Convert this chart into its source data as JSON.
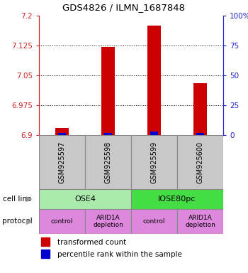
{
  "title": "GDS4826 / ILMN_1687848",
  "samples": [
    "GSM925597",
    "GSM925598",
    "GSM925599",
    "GSM925600"
  ],
  "transformed_counts": [
    6.918,
    7.122,
    7.175,
    7.03
  ],
  "percentile_ranks": [
    2,
    2,
    3,
    2
  ],
  "y_min": 6.9,
  "y_max": 7.2,
  "y_ticks": [
    6.9,
    6.975,
    7.05,
    7.125,
    7.2
  ],
  "y_tick_labels": [
    "6.9",
    "6.975",
    "7.05",
    "7.125",
    "7.2"
  ],
  "right_y_ticks": [
    0,
    25,
    50,
    75,
    100
  ],
  "right_y_tick_labels": [
    "0",
    "25",
    "50",
    "75",
    "100%"
  ],
  "cell_line_labels": [
    "OSE4",
    "IOSE80pc"
  ],
  "cell_line_colors": [
    "#aaeaaa",
    "#44dd44"
  ],
  "cell_line_spans": [
    [
      0,
      2
    ],
    [
      2,
      4
    ]
  ],
  "protocol_labels": [
    "control",
    "ARID1A\ndepletion",
    "control",
    "ARID1A\ndepletion"
  ],
  "protocol_color": "#dd88dd",
  "bar_color": "#cc0000",
  "percentile_color": "#0000cc",
  "sample_box_color": "#c8c8c8",
  "sample_box_edge": "#888888",
  "legend_red_label": "transformed count",
  "legend_blue_label": "percentile rank within the sample",
  "cell_line_text": "cell line",
  "protocol_text": "protocol",
  "grid_yticks": [
    6.975,
    7.05,
    7.125
  ]
}
